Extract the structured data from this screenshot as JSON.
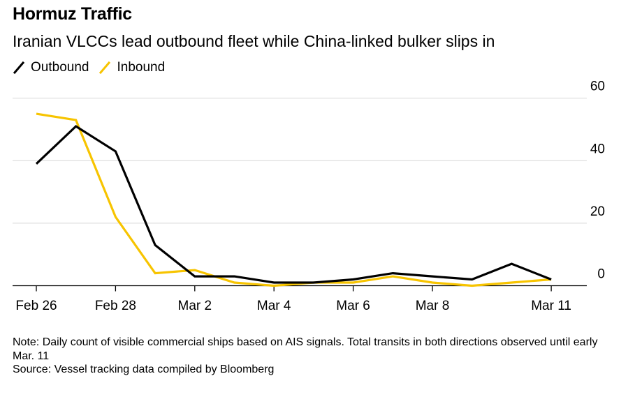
{
  "header": {
    "title": "Hormuz Traffic",
    "subtitle": "Iranian VLCCs lead outbound fleet while China-linked bulker slips in"
  },
  "colors": {
    "outbound": "#000000",
    "inbound": "#F7C400",
    "grid": "#d7d7d7",
    "axis": "#000000"
  },
  "footer": {
    "note": "Note: Daily count of visible commercial ships based on AIS signals. Total transits in both directions observed until early Mar. 11",
    "source": "Source: Vessel tracking data compiled by Bloomberg"
  },
  "chart_data": {
    "type": "line",
    "title": "Hormuz Traffic",
    "subtitle": "Iranian VLCCs lead outbound fleet while China-linked bulker slips in",
    "xlabel": "",
    "ylabel": "",
    "x": [
      "Feb 26",
      "Feb 27",
      "Feb 28",
      "Mar 1",
      "Mar 2",
      "Mar 3",
      "Mar 4",
      "Mar 5",
      "Mar 6",
      "Mar 7",
      "Mar 8",
      "Mar 9",
      "Mar 10",
      "Mar 11"
    ],
    "x_tick_labels": [
      {
        "index": 0,
        "label": "Feb 26"
      },
      {
        "index": 2,
        "label": "Feb 28"
      },
      {
        "index": 4,
        "label": "Mar 2"
      },
      {
        "index": 6,
        "label": "Mar 4"
      },
      {
        "index": 8,
        "label": "Mar 6"
      },
      {
        "index": 10,
        "label": "Mar 8"
      },
      {
        "index": 13,
        "label": "Mar 11"
      }
    ],
    "y_ticks": [
      0,
      20,
      40,
      60
    ],
    "ylim": [
      -3,
      62
    ],
    "grid": true,
    "y_axis_side": "right",
    "legend_position": "top-left",
    "series": [
      {
        "name": "Outbound",
        "color": "#000000",
        "values": [
          39,
          51,
          43,
          13,
          3,
          3,
          1,
          1,
          2,
          4,
          3,
          2,
          7,
          2
        ]
      },
      {
        "name": "Inbound",
        "color": "#F7C400",
        "values": [
          55,
          53,
          22,
          4,
          5,
          1,
          0,
          1,
          1,
          3,
          1,
          0,
          1,
          2
        ]
      }
    ]
  }
}
